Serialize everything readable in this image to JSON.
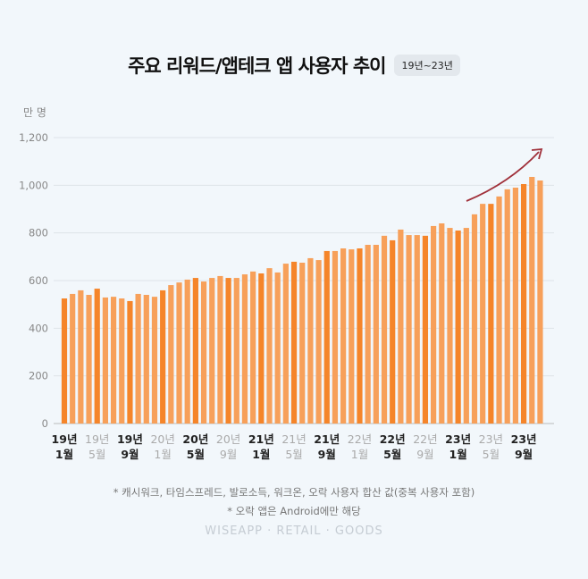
{
  "header": {
    "title": "주요 리워드/앱테크 앱 사용자 추이",
    "badge": "19년~23년"
  },
  "footnotes": [
    "* 캐시워크, 타임스프레드, 발로소득, 워크온, 오락 사용자 합산 값(중복 사용자 포함)",
    "* 오락 앱은 Android에만 해당"
  ],
  "watermark": "WISEAPP · RETAIL · GOODS",
  "colors": {
    "bar": "#f7a05a",
    "bar_highlight": "#f5852a",
    "arrow": "#a0303a",
    "grid": "#dde3e8"
  },
  "chart_data": {
    "type": "bar",
    "title": "주요 리워드/앱테크 앱 사용자 추이",
    "ylabel": "만 명",
    "ylim": [
      0,
      1200
    ],
    "yticks": [
      "0",
      "200",
      "400",
      "600",
      "800",
      "1,000",
      "1,200"
    ],
    "grid": true,
    "xtick_labels": [
      [
        "19년",
        "1월"
      ],
      [
        "19년",
        "5월"
      ],
      [
        "19년",
        "9월"
      ],
      [
        "20년",
        "1월"
      ],
      [
        "20년",
        "5월"
      ],
      [
        "20년",
        "9월"
      ],
      [
        "21년",
        "1월"
      ],
      [
        "21년",
        "5월"
      ],
      [
        "21년",
        "9월"
      ],
      [
        "22년",
        "1월"
      ],
      [
        "22년",
        "5월"
      ],
      [
        "22년",
        "9월"
      ],
      [
        "23년",
        "1월"
      ],
      [
        "23년",
        "5월"
      ],
      [
        "23년",
        "9월"
      ]
    ],
    "xtick_bold": [
      true,
      false,
      true,
      false,
      true,
      false,
      true,
      false,
      true,
      false,
      true,
      false,
      true,
      false,
      true
    ],
    "categories_start": "19년 1월",
    "values": [
      525,
      544,
      559,
      540,
      566,
      529,
      532,
      525,
      514,
      544,
      540,
      532,
      559,
      581,
      592,
      604,
      611,
      596,
      611,
      619,
      611,
      611,
      626,
      638,
      630,
      652,
      634,
      671,
      679,
      675,
      694,
      686,
      724,
      724,
      735,
      731,
      735,
      750,
      750,
      788,
      769,
      814,
      791,
      791,
      788,
      829,
      840,
      821,
      810,
      821,
      878,
      922,
      922,
      953,
      983,
      990,
      1005,
      1035,
      1020
    ]
  }
}
